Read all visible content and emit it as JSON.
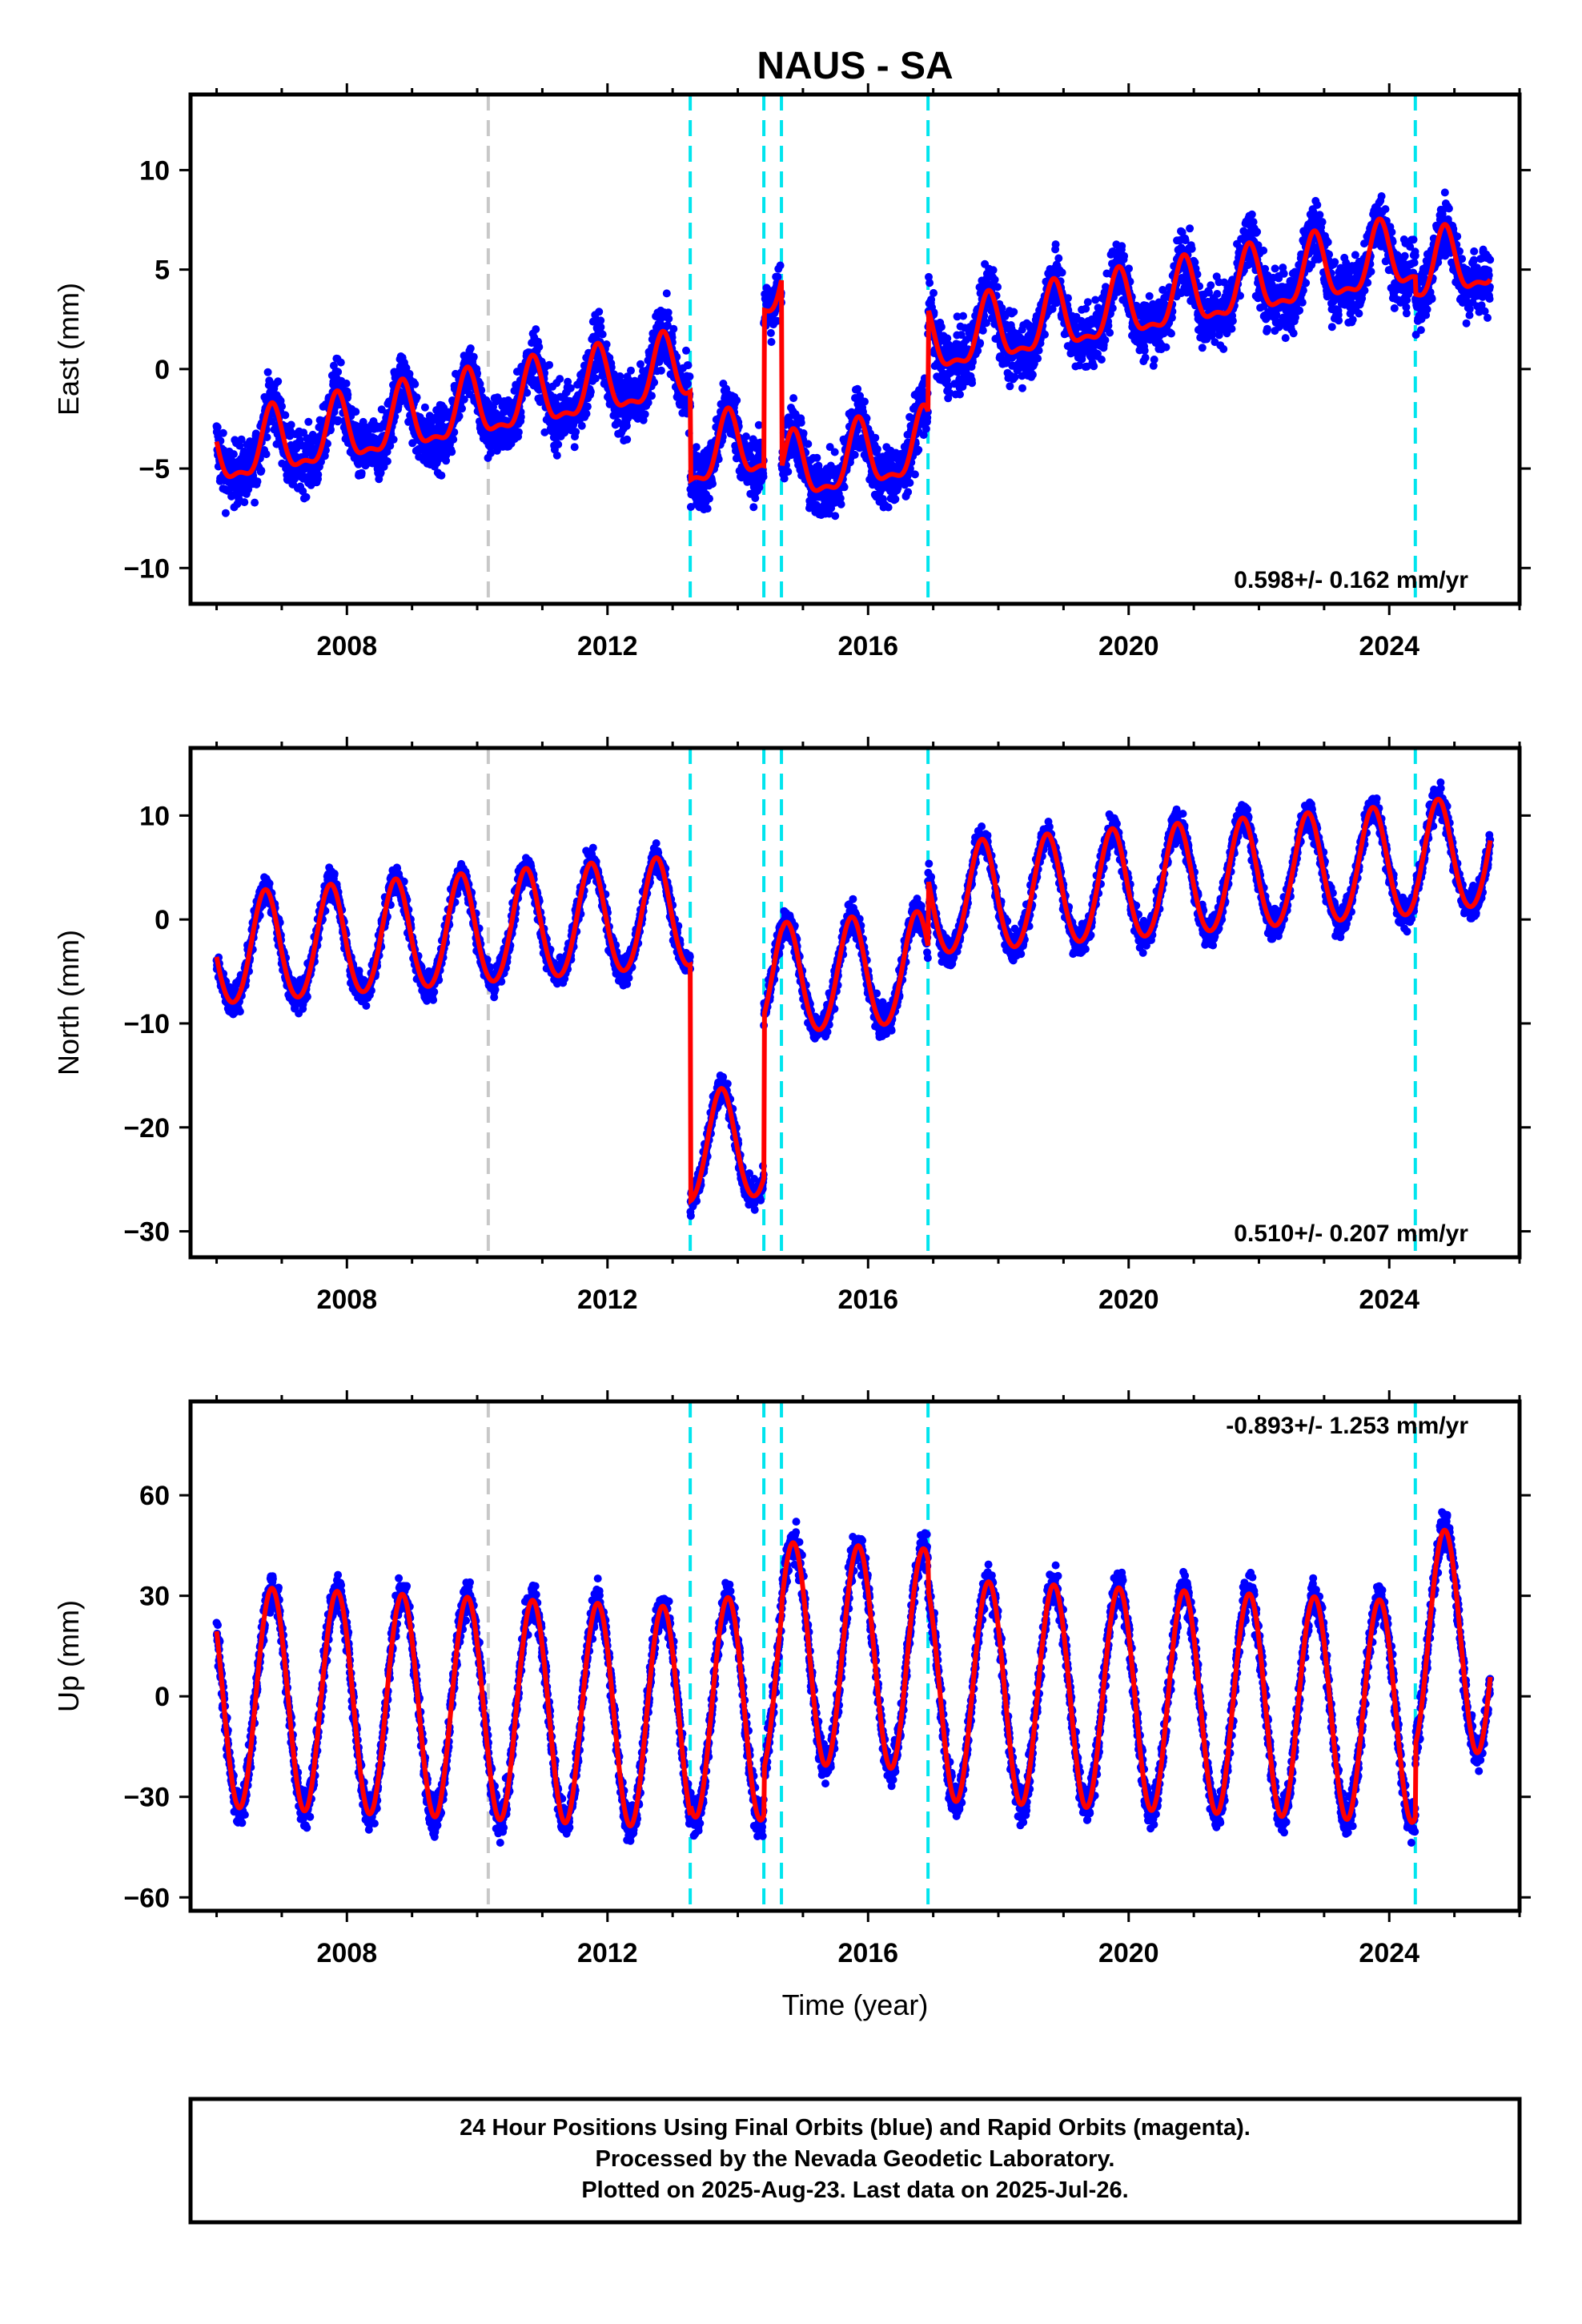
{
  "title": "NAUS - SA",
  "xlabel": "Time (year)",
  "footer": {
    "line1": "24 Hour Positions Using Final Orbits (blue) and Rapid Orbits (magenta).",
    "line2": "Processed by the Nevada Geodetic Laboratory.",
    "line3": "Plotted on 2025-Aug-23. Last data on 2025-Jul-26."
  },
  "colors": {
    "final_orbits": "#0000ff",
    "rapid_orbits": "#ff00ff",
    "model": "#ff0000",
    "equipment_change": "#00e5ee",
    "other_event": "#c8c8c8"
  },
  "chart_data": [
    {
      "type": "scatter",
      "name": "East",
      "ylabel": "East (mm)",
      "rate_label": "0.598+/- 0.162 mm/yr",
      "rate_position": "bottom-right",
      "xlim": [
        2005.6,
        2026.0
      ],
      "ylim": [
        -11.8,
        13.8
      ],
      "xticks": [
        2008,
        2012,
        2016,
        2020,
        2024
      ],
      "yticks": [
        -10,
        -5,
        0,
        5,
        10
      ],
      "event_lines": [
        {
          "year": 2010.17,
          "kind": "other"
        },
        {
          "year": 2013.27,
          "kind": "equipment"
        },
        {
          "year": 2014.4,
          "kind": "equipment"
        },
        {
          "year": 2014.67,
          "kind": "equipment"
        },
        {
          "year": 2016.92,
          "kind": "equipment"
        },
        {
          "year": 2024.4,
          "kind": "equipment"
        }
      ],
      "model": {
        "start": 2006.0,
        "end": 2025.55,
        "rate": 0.598,
        "amp_annual": 1.6,
        "amp_semiannual": 0.6,
        "phase_peak": 0.85,
        "segments": [
          {
            "from": 2006.0,
            "to": 2013.27,
            "offset_at_start": -4.4
          },
          {
            "from": 2013.27,
            "to": 2014.4,
            "offset_at_start": -4.5
          },
          {
            "from": 2014.4,
            "to": 2014.67,
            "offset_at_start": 4.0
          },
          {
            "from": 2014.67,
            "to": 2016.92,
            "offset_at_start": -5.3
          },
          {
            "from": 2016.92,
            "to": 2024.4,
            "offset_at_start": 1.2
          },
          {
            "from": 2024.4,
            "to": 2025.55,
            "offset_at_start": 4.8
          }
        ]
      },
      "scatter_noise_mm": 1.4
    },
    {
      "type": "scatter",
      "name": "North",
      "ylabel": "North (mm)",
      "rate_label": "0.510+/- 0.207 mm/yr",
      "rate_position": "bottom-right",
      "xlim": [
        2005.6,
        2026.0
      ],
      "ylim": [
        -32.5,
        16.5
      ],
      "xticks": [
        2008,
        2012,
        2016,
        2020,
        2024
      ],
      "yticks": [
        -30,
        -20,
        -10,
        0,
        10
      ],
      "event_lines": [
        {
          "year": 2010.17,
          "kind": "other"
        },
        {
          "year": 2013.27,
          "kind": "equipment"
        },
        {
          "year": 2014.4,
          "kind": "equipment"
        },
        {
          "year": 2014.67,
          "kind": "equipment"
        },
        {
          "year": 2016.92,
          "kind": "equipment"
        },
        {
          "year": 2024.4,
          "kind": "equipment"
        }
      ],
      "model": {
        "start": 2006.0,
        "end": 2025.55,
        "rate": 0.51,
        "amp_annual": 5.3,
        "amp_semiannual": 0.4,
        "phase_peak": 0.75,
        "segments": [
          {
            "from": 2006.0,
            "to": 2013.27,
            "offset_at_start": -3.2
          },
          {
            "from": 2013.27,
            "to": 2014.4,
            "offset_at_start": -22.2
          },
          {
            "from": 2014.4,
            "to": 2014.67,
            "offset_at_start": -6.0
          },
          {
            "from": 2014.67,
            "to": 2016.92,
            "offset_at_start": -6.0
          },
          {
            "from": 2016.92,
            "to": 2024.4,
            "offset_at_start": 1.6
          },
          {
            "from": 2024.4,
            "to": 2025.55,
            "offset_at_start": 5.7
          }
        ]
      },
      "scatter_noise_mm": 1.3
    },
    {
      "type": "scatter",
      "name": "Up",
      "ylabel": "Up (mm)",
      "rate_label": "-0.893+/- 1.253 mm/yr",
      "rate_position": "top-right",
      "xlim": [
        2005.6,
        2026.0
      ],
      "ylim": [
        -64,
        88
      ],
      "xticks": [
        2008,
        2012,
        2016,
        2020,
        2024
      ],
      "yticks": [
        -60,
        -30,
        0,
        30,
        60
      ],
      "event_lines": [
        {
          "year": 2010.17,
          "kind": "other"
        },
        {
          "year": 2013.27,
          "kind": "equipment"
        },
        {
          "year": 2014.4,
          "kind": "equipment"
        },
        {
          "year": 2014.67,
          "kind": "equipment"
        },
        {
          "year": 2016.92,
          "kind": "equipment"
        },
        {
          "year": 2024.4,
          "kind": "equipment"
        }
      ],
      "model": {
        "start": 2006.0,
        "end": 2025.55,
        "rate": -0.893,
        "amp_annual": 33.0,
        "amp_semiannual": 0.0,
        "phase_peak": 0.85,
        "segments": [
          {
            "from": 2006.0,
            "to": 2013.27,
            "offset_at_start": 0.0
          },
          {
            "from": 2013.27,
            "to": 2014.4,
            "offset_at_start": -3.0
          },
          {
            "from": 2014.4,
            "to": 2014.67,
            "offset_at_start": 10.0
          },
          {
            "from": 2014.67,
            "to": 2016.92,
            "offset_at_start": 13.0
          },
          {
            "from": 2016.92,
            "to": 2024.4,
            "offset_at_start": 2.0
          },
          {
            "from": 2024.4,
            "to": 2025.55,
            "offset_at_start": 17.0
          }
        ]
      },
      "scatter_noise_mm": 5.0
    }
  ]
}
